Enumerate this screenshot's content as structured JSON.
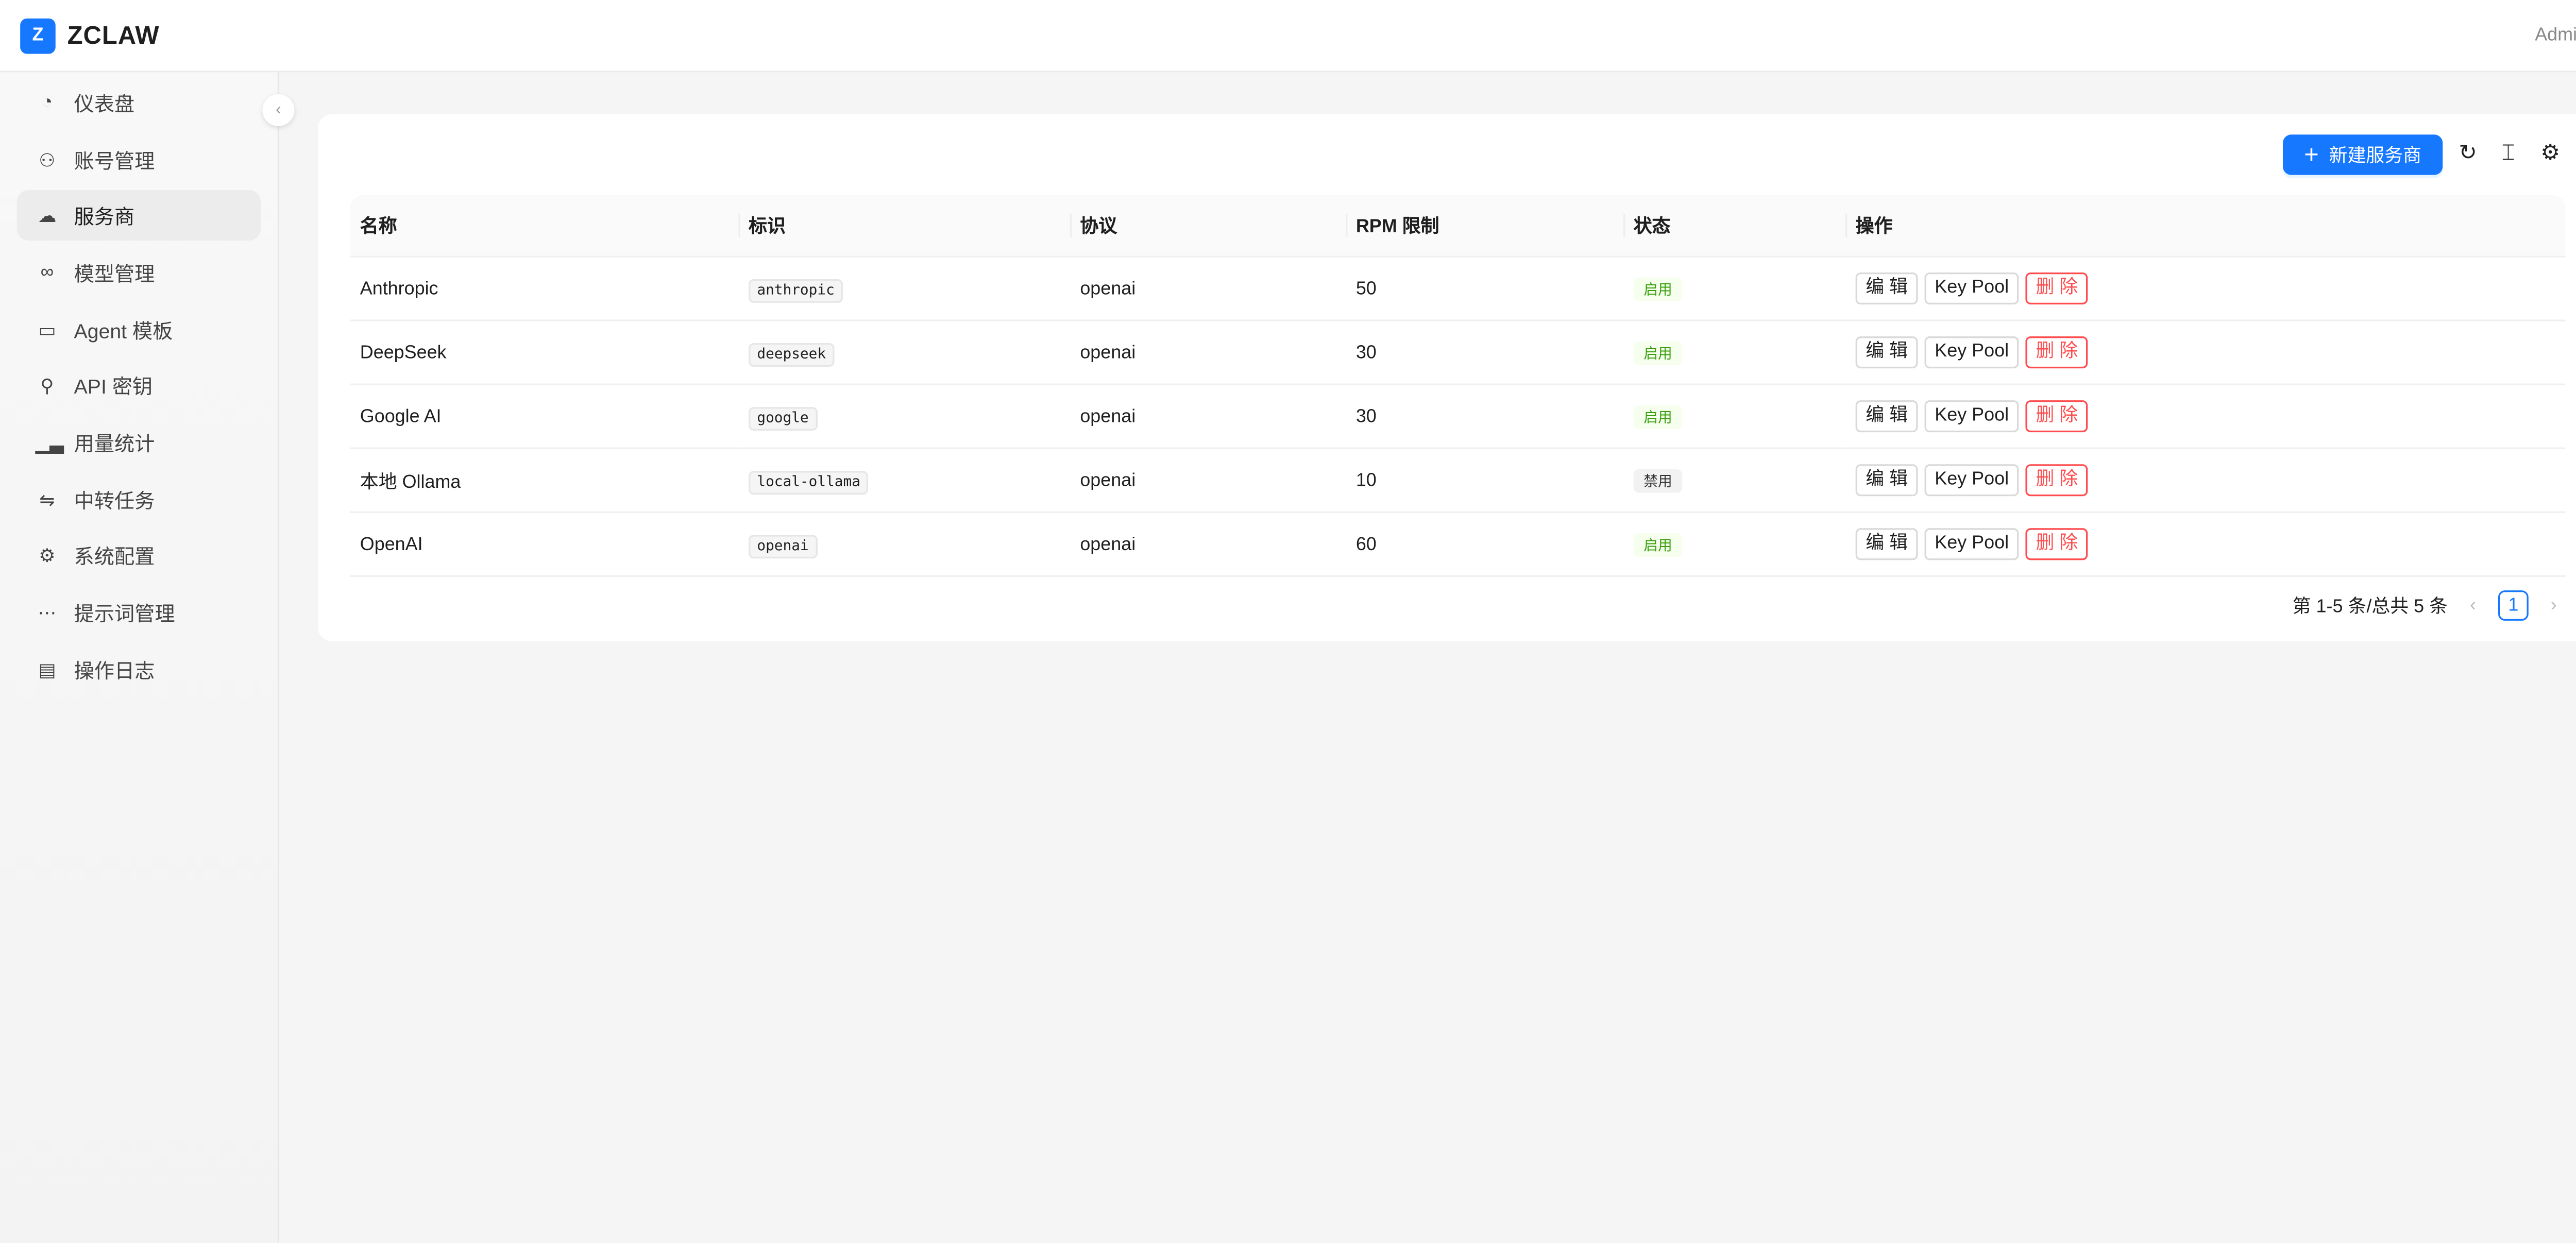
{
  "header": {
    "logo_letter": "Z",
    "brand": "ZCLAW",
    "user": "Admin"
  },
  "sidebar": {
    "items": [
      {
        "label": "仪表盘",
        "icon": "dashboard-icon",
        "glyph": "◔"
      },
      {
        "label": "账号管理",
        "icon": "users-icon",
        "glyph": "⚇"
      },
      {
        "label": "服务商",
        "icon": "cloud-server-icon",
        "glyph": "☁",
        "active": true
      },
      {
        "label": "模型管理",
        "icon": "link-icon",
        "glyph": "∞"
      },
      {
        "label": "Agent 模板",
        "icon": "template-icon",
        "glyph": "▭"
      },
      {
        "label": "API 密钥",
        "icon": "key-icon",
        "glyph": "⚲"
      },
      {
        "label": "用量统计",
        "icon": "bar-chart-icon",
        "glyph": "▁▃"
      },
      {
        "label": "中转任务",
        "icon": "swap-icon",
        "glyph": "⇋"
      },
      {
        "label": "系统配置",
        "icon": "gear-icon",
        "glyph": "⚙"
      },
      {
        "label": "提示词管理",
        "icon": "message-icon",
        "glyph": "⋯"
      },
      {
        "label": "操作日志",
        "icon": "file-icon",
        "glyph": "▤"
      }
    ],
    "collapse_glyph": "‹"
  },
  "toolbar": {
    "new_label": "新建服务商",
    "plus": "+",
    "refresh": "↻",
    "density": "⌶",
    "settings": "⚙"
  },
  "table": {
    "columns": [
      "名称",
      "标识",
      "协议",
      "RPM 限制",
      "状态",
      "操作"
    ],
    "rows": [
      {
        "name": "Anthropic",
        "id": "anthropic",
        "protocol": "openai",
        "rpm": "50",
        "status": "启用",
        "enabled": true
      },
      {
        "name": "DeepSeek",
        "id": "deepseek",
        "protocol": "openai",
        "rpm": "30",
        "status": "启用",
        "enabled": true
      },
      {
        "name": "Google AI",
        "id": "google",
        "protocol": "openai",
        "rpm": "30",
        "status": "启用",
        "enabled": true
      },
      {
        "name": "本地 Ollama",
        "id": "local-ollama",
        "protocol": "openai",
        "rpm": "10",
        "status": "禁用",
        "enabled": false
      },
      {
        "name": "OpenAI",
        "id": "openai",
        "protocol": "openai",
        "rpm": "60",
        "status": "启用",
        "enabled": true
      }
    ],
    "actions": {
      "edit": "编 辑",
      "keypool": "Key Pool",
      "delete": "删 除"
    }
  },
  "pagination": {
    "summary": "第 1-5 条/总共 5 条",
    "current": "1",
    "prev": "‹",
    "next": "›"
  },
  "colors": {
    "primary": "#1677ff",
    "danger": "#ff4d4f",
    "success": "#389e0d"
  }
}
